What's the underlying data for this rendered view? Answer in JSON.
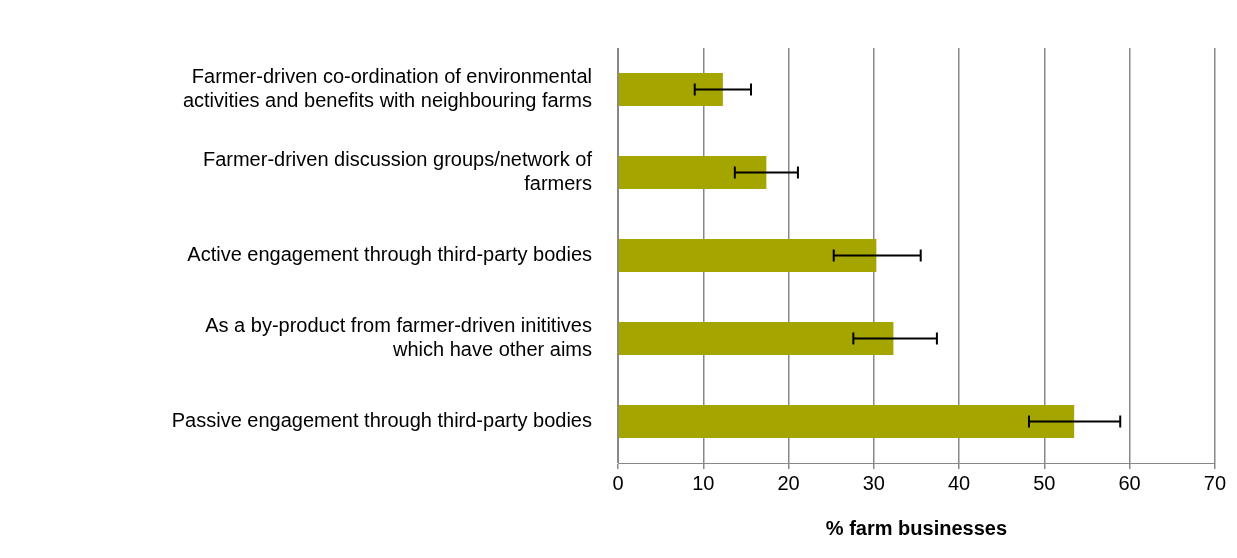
{
  "chart_data": {
    "type": "bar",
    "orientation": "horizontal",
    "xlabel": "% farm businesses",
    "categories": [
      "Farmer-driven co-ordination of environmental activities and benefits with neighbouring farms",
      "Farmer-driven discussion groups/network of farmers",
      "Active engagement through third-party bodies",
      "As a by-product from farmer-driven inititives which have other aims",
      "Passive engagement through third-party bodies"
    ],
    "values": [
      12.3,
      17.4,
      30.3,
      32.3,
      53.5
    ],
    "errors": [
      [
        9.0,
        15.6
      ],
      [
        13.7,
        21.1
      ],
      [
        25.3,
        35.5
      ],
      [
        27.6,
        37.4
      ],
      [
        48.2,
        58.9
      ]
    ],
    "color": "#a5a500",
    "xlim": [
      0,
      70
    ],
    "xticks": [
      0,
      10,
      20,
      30,
      40,
      50,
      60,
      70
    ],
    "grid": "x",
    "legend": false
  }
}
